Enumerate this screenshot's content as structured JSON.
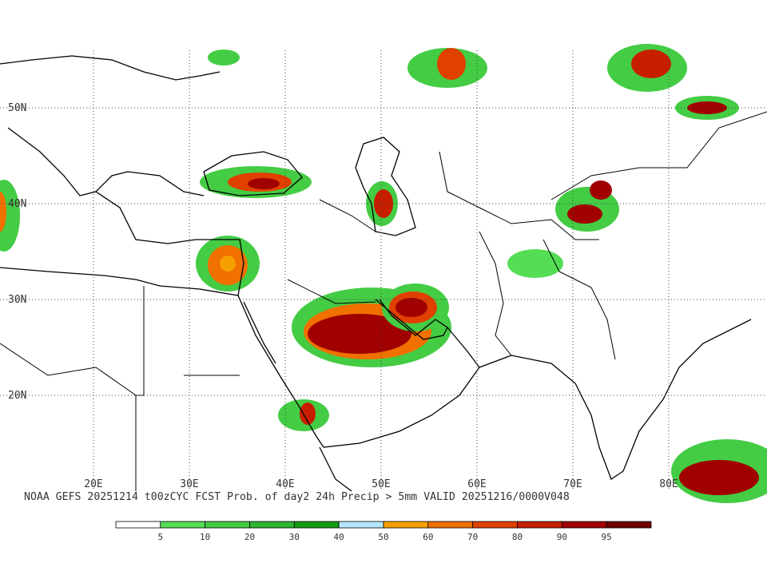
{
  "map": {
    "lat_labels": [
      "50N",
      "40N",
      "30N",
      "20N"
    ],
    "lon_labels": [
      "20E",
      "30E",
      "40E",
      "50E",
      "60E",
      "70E",
      "80E"
    ],
    "caption": "NOAA GEFS 20251214 t00zCYC FCST Prob. of day2 24h Precip > 5mm  VALID 20251216/0000V048",
    "colorbar": {
      "labels": [
        5,
        10,
        20,
        30,
        40,
        50,
        60,
        70,
        80,
        90,
        95
      ],
      "colors": [
        "#ffffff",
        "#55dd55",
        "#44cc44",
        "#2fb42f",
        "#169b16",
        "#b4e6fa",
        "#f5a000",
        "#f07000",
        "#e04000",
        "#c81e00",
        "#a00000",
        "#6e0000"
      ]
    }
  }
}
